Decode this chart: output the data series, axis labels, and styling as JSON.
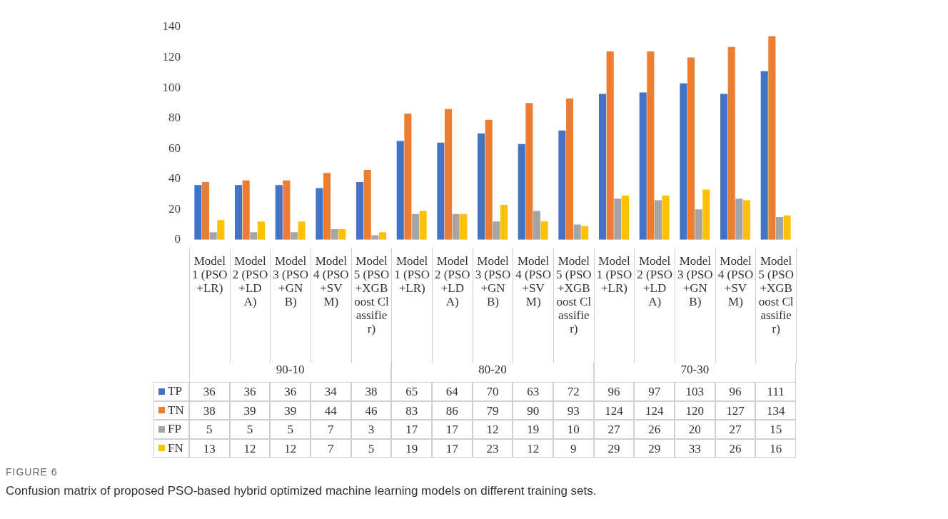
{
  "chart_data": {
    "type": "bar",
    "title": "FIGURE 6",
    "subtitle": "Confusion matrix of proposed PSO-based hybrid optimized machine learning models on different training sets.",
    "categories": [
      "Model 1 (PSO+LR)",
      "Model 2 (PSO+LDA)",
      "Model 3 (PSO+GNB)",
      "Model 4 (PSO+SVM)",
      "Model 5 (PSO+XGBoost Classifier)",
      "Model 1 (PSO+LR)",
      "Model 2 (PSO+LDA)",
      "Model 3 (PSO+GNB)",
      "Model 4 (PSO+SVM)",
      "Model 5 (PSO+XGBoost Classifier)",
      "Model 1 (PSO+LR)",
      "Model 2 (PSO+LDA)",
      "Model 3 (PSO+GNB)",
      "Model 4 (PSO+SVM)",
      "Model 5 (PSO+XGBoost Classifier)"
    ],
    "annotations": [
      "90-10",
      "80-20",
      "70-30"
    ],
    "series": [
      {
        "name": "TP",
        "color": "#4472c4",
        "values": [
          36,
          36,
          36,
          34,
          38,
          65,
          64,
          70,
          63,
          72,
          96,
          97,
          103,
          96,
          111
        ]
      },
      {
        "name": "TN",
        "color": "#ed7d31",
        "values": [
          38,
          39,
          39,
          44,
          46,
          83,
          86,
          79,
          90,
          93,
          124,
          124,
          120,
          127,
          134
        ]
      },
      {
        "name": "FP",
        "color": "#a5a5a5",
        "values": [
          5,
          5,
          5,
          7,
          3,
          17,
          17,
          12,
          19,
          10,
          27,
          26,
          20,
          27,
          15
        ]
      },
      {
        "name": "FN",
        "color": "#ffc000",
        "values": [
          13,
          12,
          12,
          7,
          5,
          19,
          17,
          23,
          12,
          9,
          29,
          29,
          33,
          26,
          16
        ]
      }
    ],
    "ylim": [
      0,
      140
    ],
    "yticks": [
      0,
      20,
      40,
      60,
      80,
      100,
      120,
      140
    ],
    "grid": false,
    "legend": "bottom",
    "data_labels": true
  }
}
